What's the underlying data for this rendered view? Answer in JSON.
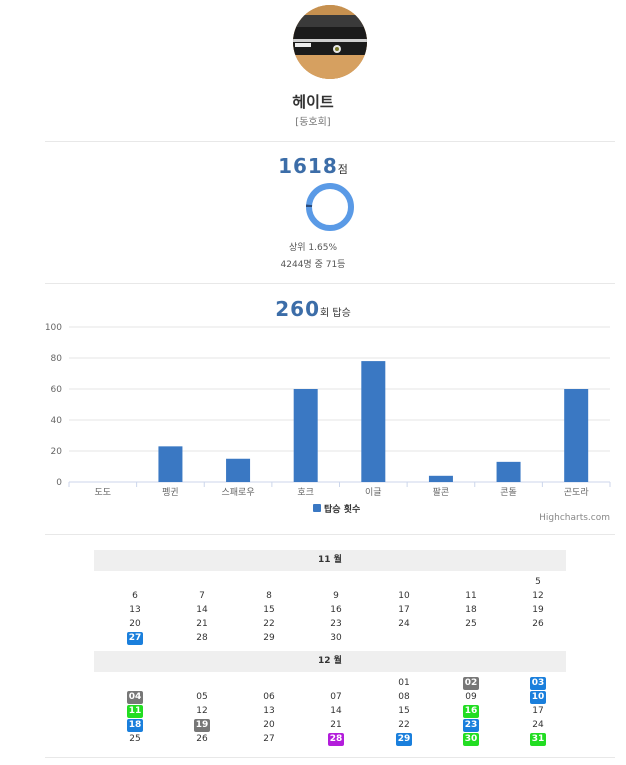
{
  "profile": {
    "name": "헤이트",
    "club": "[동호회]"
  },
  "score": {
    "value": "1618",
    "unit": "점",
    "rank_percent": 0.0165,
    "rank_text": "상위 1.65%",
    "count_text": "4244명 중 71등"
  },
  "wins": {
    "value": "260",
    "unit": "회 탑승"
  },
  "chart_data": {
    "type": "bar",
    "categories": [
      "도도",
      "펭귄",
      "스패로우",
      "호크",
      "이글",
      "팔콘",
      "콘돌",
      "곤도라"
    ],
    "series": [
      {
        "name": "탑승 횟수",
        "values": [
          0,
          23,
          15,
          60,
          78,
          4,
          13,
          60
        ],
        "color": "#3a78c3"
      }
    ],
    "ylim": [
      0,
      100
    ],
    "yticks": [
      0,
      20,
      40,
      60,
      80,
      100
    ],
    "grid": true,
    "legend": "bottom-center",
    "credits": "Highcharts.com"
  },
  "calendar": {
    "colors": {
      "gray": "#777777",
      "blue": "#1a7fdc",
      "green": "#22dd22",
      "purple": "#b31ddb"
    },
    "months": [
      {
        "label": "11 월",
        "weeks": [
          [
            "",
            "",
            "",
            "",
            "",
            "",
            "5"
          ],
          [
            "6",
            "7",
            "8",
            "9",
            "10",
            "11",
            "12"
          ],
          [
            "13",
            "14",
            "15",
            "16",
            "17",
            "18",
            "19"
          ],
          [
            "20",
            "21",
            "22",
            "23",
            "24",
            "25",
            "26"
          ],
          [
            "27",
            "28",
            "29",
            "30",
            "",
            "",
            ""
          ]
        ],
        "badges": {
          "27": "blue"
        }
      },
      {
        "label": "12 월",
        "weeks": [
          [
            "",
            "",
            "",
            "",
            "01",
            "02",
            "03"
          ],
          [
            "04",
            "05",
            "06",
            "07",
            "08",
            "09",
            "10"
          ],
          [
            "11",
            "12",
            "13",
            "14",
            "15",
            "16",
            "17"
          ],
          [
            "18",
            "19",
            "20",
            "21",
            "22",
            "23",
            "24"
          ],
          [
            "25",
            "26",
            "27",
            "28",
            "29",
            "30",
            "31"
          ]
        ],
        "badges": {
          "02": "gray",
          "03": "blue",
          "04": "gray",
          "10": "blue",
          "11": "green",
          "16": "green",
          "18": "blue",
          "19": "gray",
          "23": "blue",
          "28": "purple",
          "29": "blue",
          "30": "green",
          "31": "green"
        }
      }
    ]
  }
}
